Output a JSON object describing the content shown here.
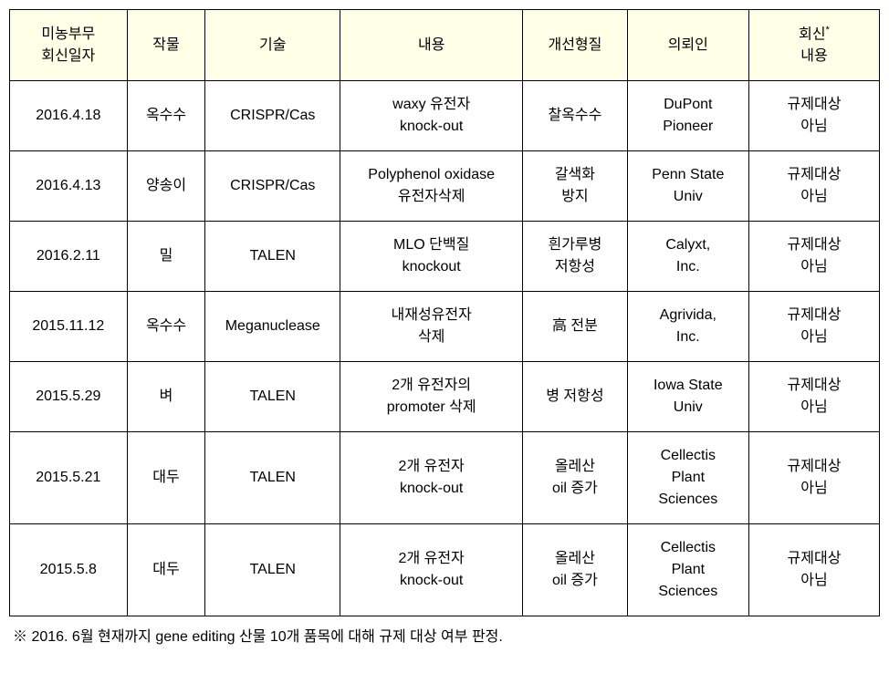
{
  "table": {
    "headers": {
      "date": "미농부무\n회신일자",
      "crop": "작물",
      "tech": "기술",
      "content": "내용",
      "trait": "개선형질",
      "client": "의뢰인",
      "response_pre": "회신",
      "response_sup": "*",
      "response_post": "내용"
    },
    "rows": [
      {
        "date": "2016.4.18",
        "crop": "옥수수",
        "tech": "CRISPR/Cas",
        "content": "waxy 유전자\nknock-out",
        "trait": "찰옥수수",
        "client": "DuPont\nPioneer",
        "response": "규제대상\n아님"
      },
      {
        "date": "2016.4.13",
        "crop": "양송이",
        "tech": "CRISPR/Cas",
        "content": "Polyphenol oxidase\n유전자삭제",
        "trait": "갈색화\n방지",
        "client": "Penn State\nUniv",
        "response": "규제대상\n아님"
      },
      {
        "date": "2016.2.11",
        "crop": "밀",
        "tech": "TALEN",
        "content": "MLO 단백질\nknockout",
        "trait": "흰가루병\n저항성",
        "client": "Calyxt,\nInc.",
        "response": "규제대상\n아님"
      },
      {
        "date": "2015.11.12",
        "crop": "옥수수",
        "tech": "Meganuclease",
        "content": "내재성유전자\n삭제",
        "trait": "高 전분",
        "client": "Agrivida,\nInc.",
        "response": "규제대상\n아님"
      },
      {
        "date": "2015.5.29",
        "crop": "벼",
        "tech": "TALEN",
        "content": "2개 유전자의\npromoter 삭제",
        "trait": "병 저항성",
        "client": "Iowa State\nUniv",
        "response": "규제대상\n아님"
      },
      {
        "date": "2015.5.21",
        "crop": "대두",
        "tech": "TALEN",
        "content": "2개 유전자\nknock-out",
        "trait": "올레산\noil 증가",
        "client": "Cellectis\nPlant\nSciences",
        "response": "규제대상\n아님"
      },
      {
        "date": "2015.5.8",
        "crop": "대두",
        "tech": "TALEN",
        "content": "2개 유전자\nknock-out",
        "trait": "올레산\noil 증가",
        "client": "Cellectis\nPlant\nSciences",
        "response": "규제대상\n아님"
      }
    ],
    "footnote": "※ 2016. 6월 현재까지 gene editing 산물 10개 품목에 대해 규제 대상 여부 판정."
  },
  "styles": {
    "header_bg": "#feffe6",
    "border_color": "#000000",
    "background_color": "#ffffff",
    "font_size": 16,
    "cell_padding": "14px 6px"
  }
}
